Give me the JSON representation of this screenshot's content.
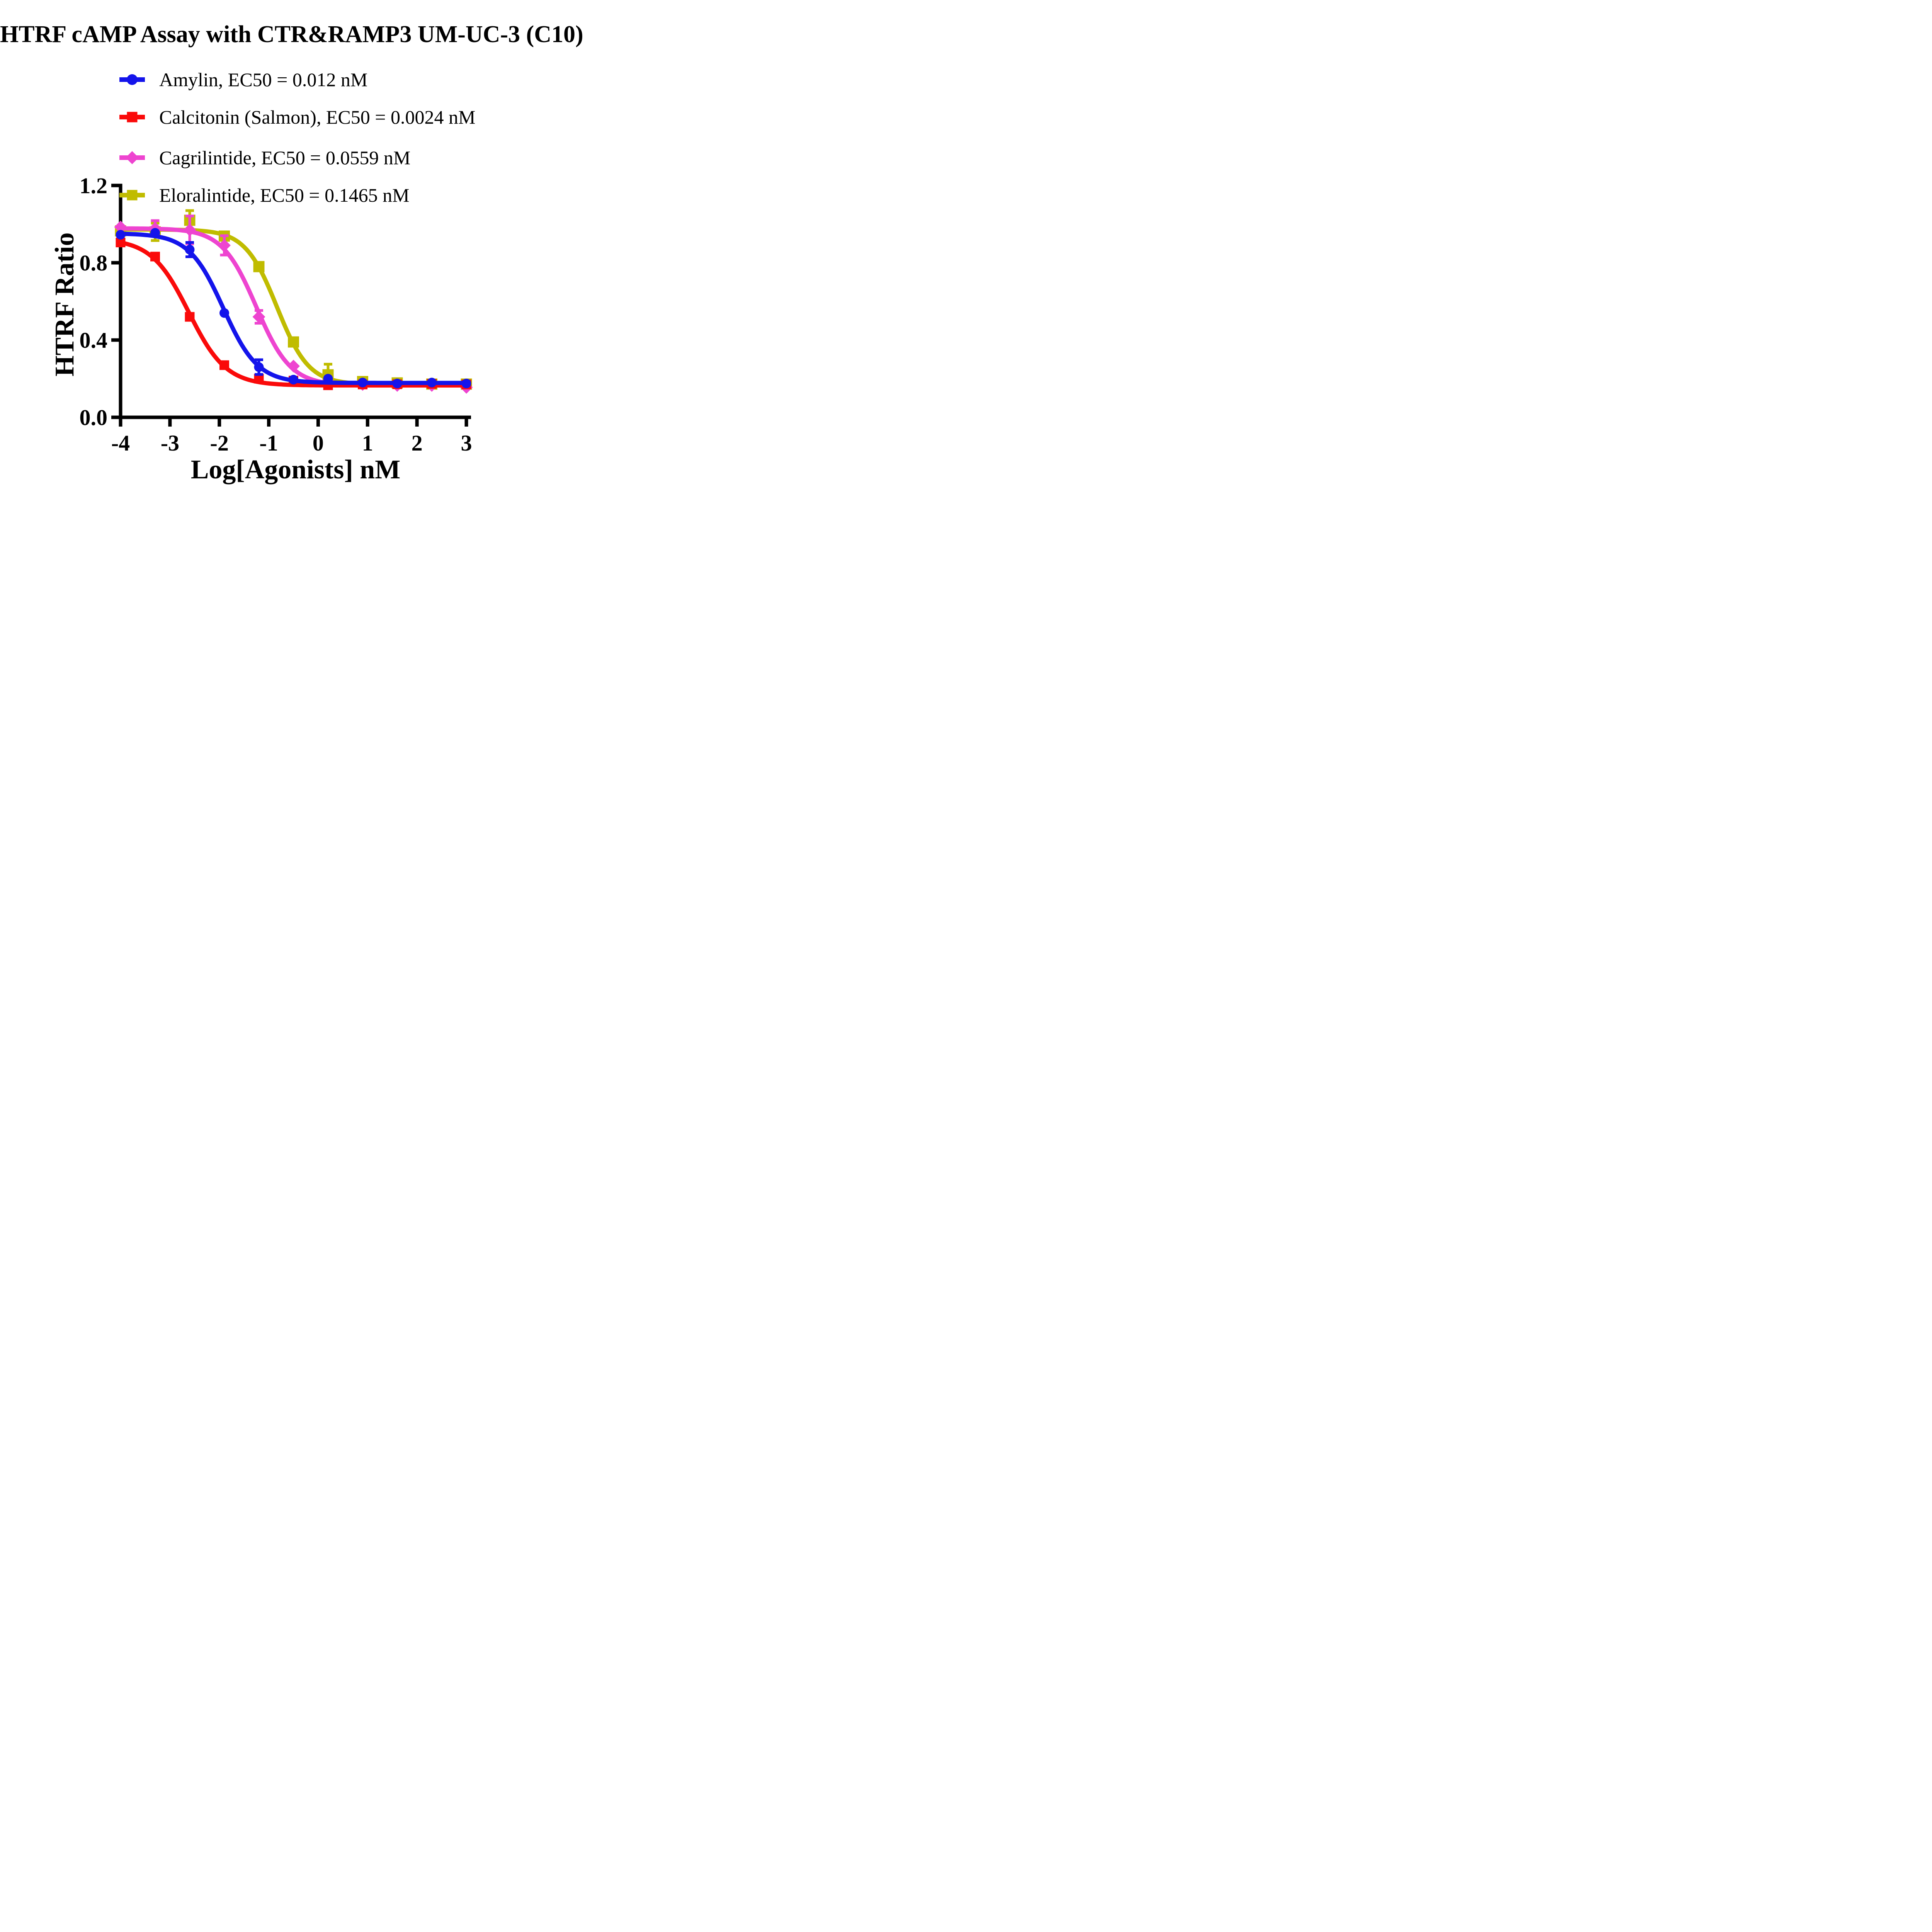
{
  "chart_data": {
    "type": "line",
    "title": "HTRF cAMP Assay with CTR&RAMP3 UM-UC-3 (C10)",
    "xlabel": "Log[Agonists] nM",
    "ylabel": "HTRF Ratio",
    "xlim": [
      -4,
      3
    ],
    "ylim": [
      0,
      1.2
    ],
    "x_ticks": [
      -4,
      -3,
      -2,
      -1,
      0,
      1,
      2,
      3
    ],
    "x_tick_labels": [
      "-4",
      "-3",
      "-2",
      "-1",
      "0",
      "1",
      "2",
      "3"
    ],
    "y_ticks": [
      0,
      0.4,
      0.8,
      1.2
    ],
    "y_tick_labels": [
      "0.0",
      "0.4",
      "0.8",
      "1.2"
    ],
    "grid": false,
    "legend_position": "top-left-above-plot",
    "x": [
      -4,
      -3.3,
      -2.6,
      -1.9,
      -1.2,
      -0.5,
      0.2,
      0.9,
      1.6,
      2.3,
      3
    ],
    "series": [
      {
        "name": "Amylin",
        "legend_label": "Amylin, EC50 = 0.012 nM",
        "ec50_nM": 0.012,
        "color": "#1414EB",
        "marker": "circle",
        "values": [
          0.945,
          0.955,
          0.868,
          0.54,
          0.26,
          0.195,
          0.2,
          0.18,
          0.175,
          0.18,
          0.175
        ],
        "errors": [
          0,
          0,
          0.037,
          0,
          0.038,
          0,
          0,
          0,
          0,
          0,
          0
        ],
        "fit": {
          "top": 0.952,
          "bottom": 0.178,
          "logec50": -1.92,
          "hill": 1.25
        }
      },
      {
        "name": "Calcitonin (Salmon)",
        "legend_label": "Calcitonin (Salmon), EC50 = 0.0024 nM",
        "ec50_nM": 0.0024,
        "color": "#FA0A0A",
        "marker": "square",
        "values": [
          0.905,
          0.832,
          0.52,
          0.27,
          0.2,
          0.19,
          0.166,
          0.17,
          0.171,
          0.173,
          0.17
        ],
        "errors": [
          0,
          0,
          0,
          0,
          0,
          0,
          0,
          0,
          0,
          0,
          0
        ],
        "fit": {
          "top": 0.924,
          "bottom": 0.165,
          "logec50": -2.62,
          "hill": 1.15
        }
      },
      {
        "name": "Cagrilintide",
        "legend_label": "Cagrilintide, EC50 = 0.0559 nM",
        "ec50_nM": 0.0559,
        "color": "#EE44D0",
        "marker": "diamond",
        "values": [
          0.985,
          0.978,
          0.97,
          0.89,
          0.52,
          0.265,
          0.185,
          0.17,
          0.165,
          0.165,
          0.155
        ],
        "errors": [
          0,
          0.04,
          0.072,
          0.05,
          0.033,
          0,
          0,
          0,
          0,
          0,
          0
        ],
        "fit": {
          "top": 0.978,
          "bottom": 0.165,
          "logec50": -1.252,
          "hill": 1.25
        }
      },
      {
        "name": "Eloralintide",
        "legend_label": "Eloralintide, EC50 = 0.1465 nM",
        "ec50_nM": 0.1465,
        "color": "#C0BC00",
        "marker": "square",
        "values": [
          0.965,
          0.96,
          1.02,
          0.938,
          0.78,
          0.39,
          0.22,
          0.185,
          0.178,
          0.172,
          0.172
        ],
        "errors": [
          0,
          0.045,
          0.05,
          0,
          0,
          0,
          0.055,
          0,
          0,
          0,
          0
        ],
        "fit": {
          "top": 0.972,
          "bottom": 0.17,
          "logec50": -0.834,
          "hill": 1.35
        }
      }
    ]
  }
}
